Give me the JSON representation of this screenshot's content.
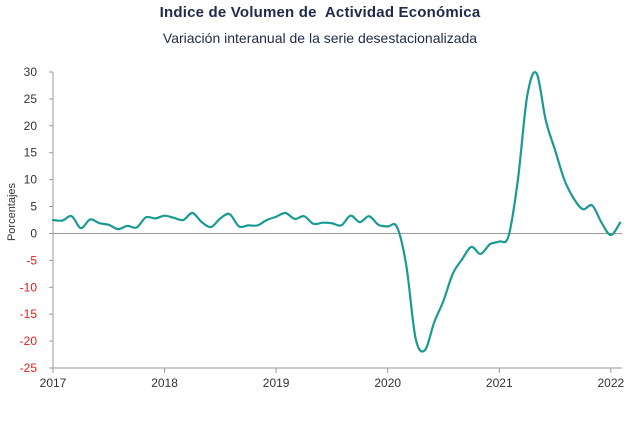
{
  "chart_data": {
    "type": "line",
    "title": "Indice de Volumen de  Actividad Económica",
    "subtitle": "Variación interanual de la serie desestacionalizada",
    "ylabel": "Porcentajes",
    "xlabel": "",
    "ylim": [
      -25,
      30
    ],
    "xlim": [
      2017,
      2022.1
    ],
    "y_ticks": [
      {
        "value": 30,
        "label": "30"
      },
      {
        "value": 25,
        "label": "25"
      },
      {
        "value": 20,
        "label": "20"
      },
      {
        "value": 15,
        "label": "15"
      },
      {
        "value": 10,
        "label": "10"
      },
      {
        "value": 5,
        "label": "5"
      },
      {
        "value": 0,
        "label": "0"
      },
      {
        "value": -5,
        "label": "-5"
      },
      {
        "value": -10,
        "label": "-10"
      },
      {
        "value": -15,
        "label": "-15"
      },
      {
        "value": -20,
        "label": "-20"
      },
      {
        "value": -25,
        "label": "-25"
      }
    ],
    "x_ticks": [
      {
        "value": 2017,
        "label": "2017"
      },
      {
        "value": 2018,
        "label": "2018"
      },
      {
        "value": 2019,
        "label": "2019"
      },
      {
        "value": 2020,
        "label": "2020"
      },
      {
        "value": 2021,
        "label": "2021"
      },
      {
        "value": 2022,
        "label": "2022"
      }
    ],
    "colors": {
      "line": "#1a9a93",
      "positive_tick": "#333333",
      "negative_tick": "#e02020",
      "axis": "#9a9a9a"
    },
    "grid": false,
    "series": [
      {
        "name": "",
        "x": [
          2017.0,
          2017.083,
          2017.167,
          2017.25,
          2017.333,
          2017.417,
          2017.5,
          2017.583,
          2017.667,
          2017.75,
          2017.833,
          2017.917,
          2018.0,
          2018.083,
          2018.167,
          2018.25,
          2018.333,
          2018.417,
          2018.5,
          2018.583,
          2018.667,
          2018.75,
          2018.833,
          2018.917,
          2019.0,
          2019.083,
          2019.167,
          2019.25,
          2019.333,
          2019.417,
          2019.5,
          2019.583,
          2019.667,
          2019.75,
          2019.833,
          2019.917,
          2020.0,
          2020.083,
          2020.167,
          2020.25,
          2020.333,
          2020.417,
          2020.5,
          2020.583,
          2020.667,
          2020.75,
          2020.833,
          2020.917,
          2021.0,
          2021.083,
          2021.167,
          2021.25,
          2021.333,
          2021.417,
          2021.5,
          2021.583,
          2021.667,
          2021.75,
          2021.833,
          2021.917,
          2022.0,
          2022.083
        ],
        "values": [
          2.5,
          2.4,
          3.2,
          1.0,
          2.6,
          1.9,
          1.6,
          0.8,
          1.4,
          1.1,
          3.0,
          2.8,
          3.3,
          2.9,
          2.5,
          3.8,
          2.1,
          1.2,
          2.8,
          3.6,
          1.3,
          1.5,
          1.5,
          2.5,
          3.1,
          3.8,
          2.7,
          3.2,
          1.8,
          2.0,
          1.9,
          1.5,
          3.3,
          2.1,
          3.2,
          1.6,
          1.3,
          1.2,
          -6.0,
          -19.5,
          -21.7,
          -16.5,
          -12.5,
          -7.5,
          -4.8,
          -2.5,
          -3.8,
          -2.0,
          -1.5,
          -0.5,
          10.0,
          25.5,
          29.8,
          21.0,
          15.5,
          10.0,
          6.5,
          4.5,
          5.2,
          2.0,
          -0.3,
          2.0
        ]
      }
    ]
  }
}
